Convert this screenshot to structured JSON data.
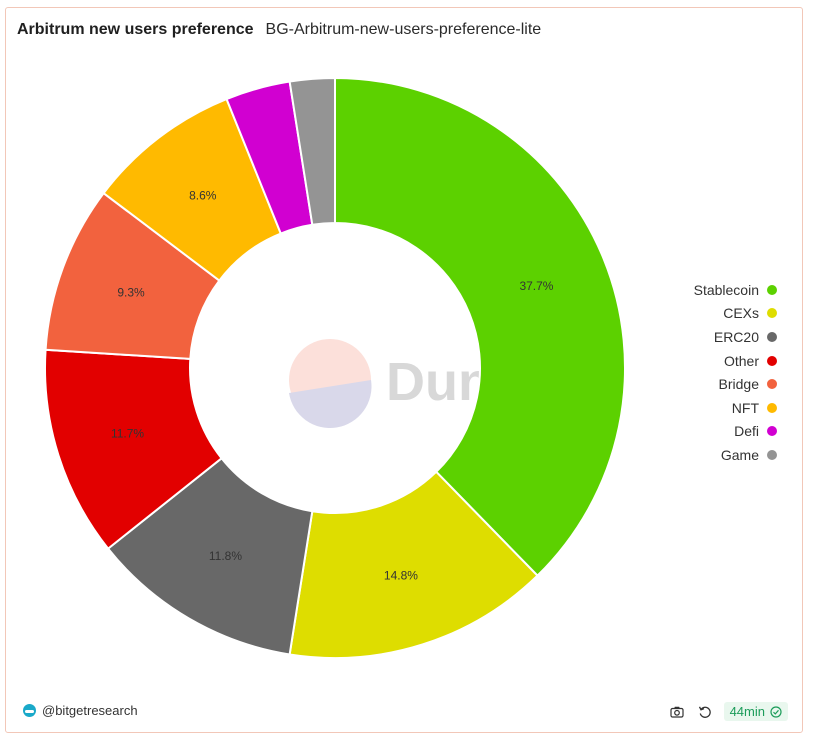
{
  "header": {
    "title": "Arbitrum new users preference",
    "subtitle": "BG-Arbitrum-new-users-preference-lite"
  },
  "watermark": {
    "text": "Dune"
  },
  "chart_data": {
    "type": "pie",
    "donut": true,
    "categories": [
      "Stablecoin",
      "CEXs",
      "ERC20",
      "Other",
      "Bridge",
      "NFT",
      "Defi",
      "Game"
    ],
    "values": [
      37.7,
      14.8,
      11.8,
      11.7,
      9.3,
      8.6,
      3.6,
      2.5
    ],
    "labels": [
      "37.7%",
      "14.8%",
      "11.8%",
      "11.7%",
      "9.3%",
      "8.6%",
      "",
      ""
    ],
    "colors": [
      "#5cd100",
      "#dedd00",
      "#686868",
      "#e20000",
      "#f2623e",
      "#ffba00",
      "#d100d1",
      "#949494"
    ],
    "legend_position": "right"
  },
  "footer": {
    "author": "@bitgetresearch",
    "age": "44min",
    "icons": {
      "camera": "camera-icon",
      "refresh": "refresh-icon",
      "check": "check-circle-icon"
    }
  }
}
